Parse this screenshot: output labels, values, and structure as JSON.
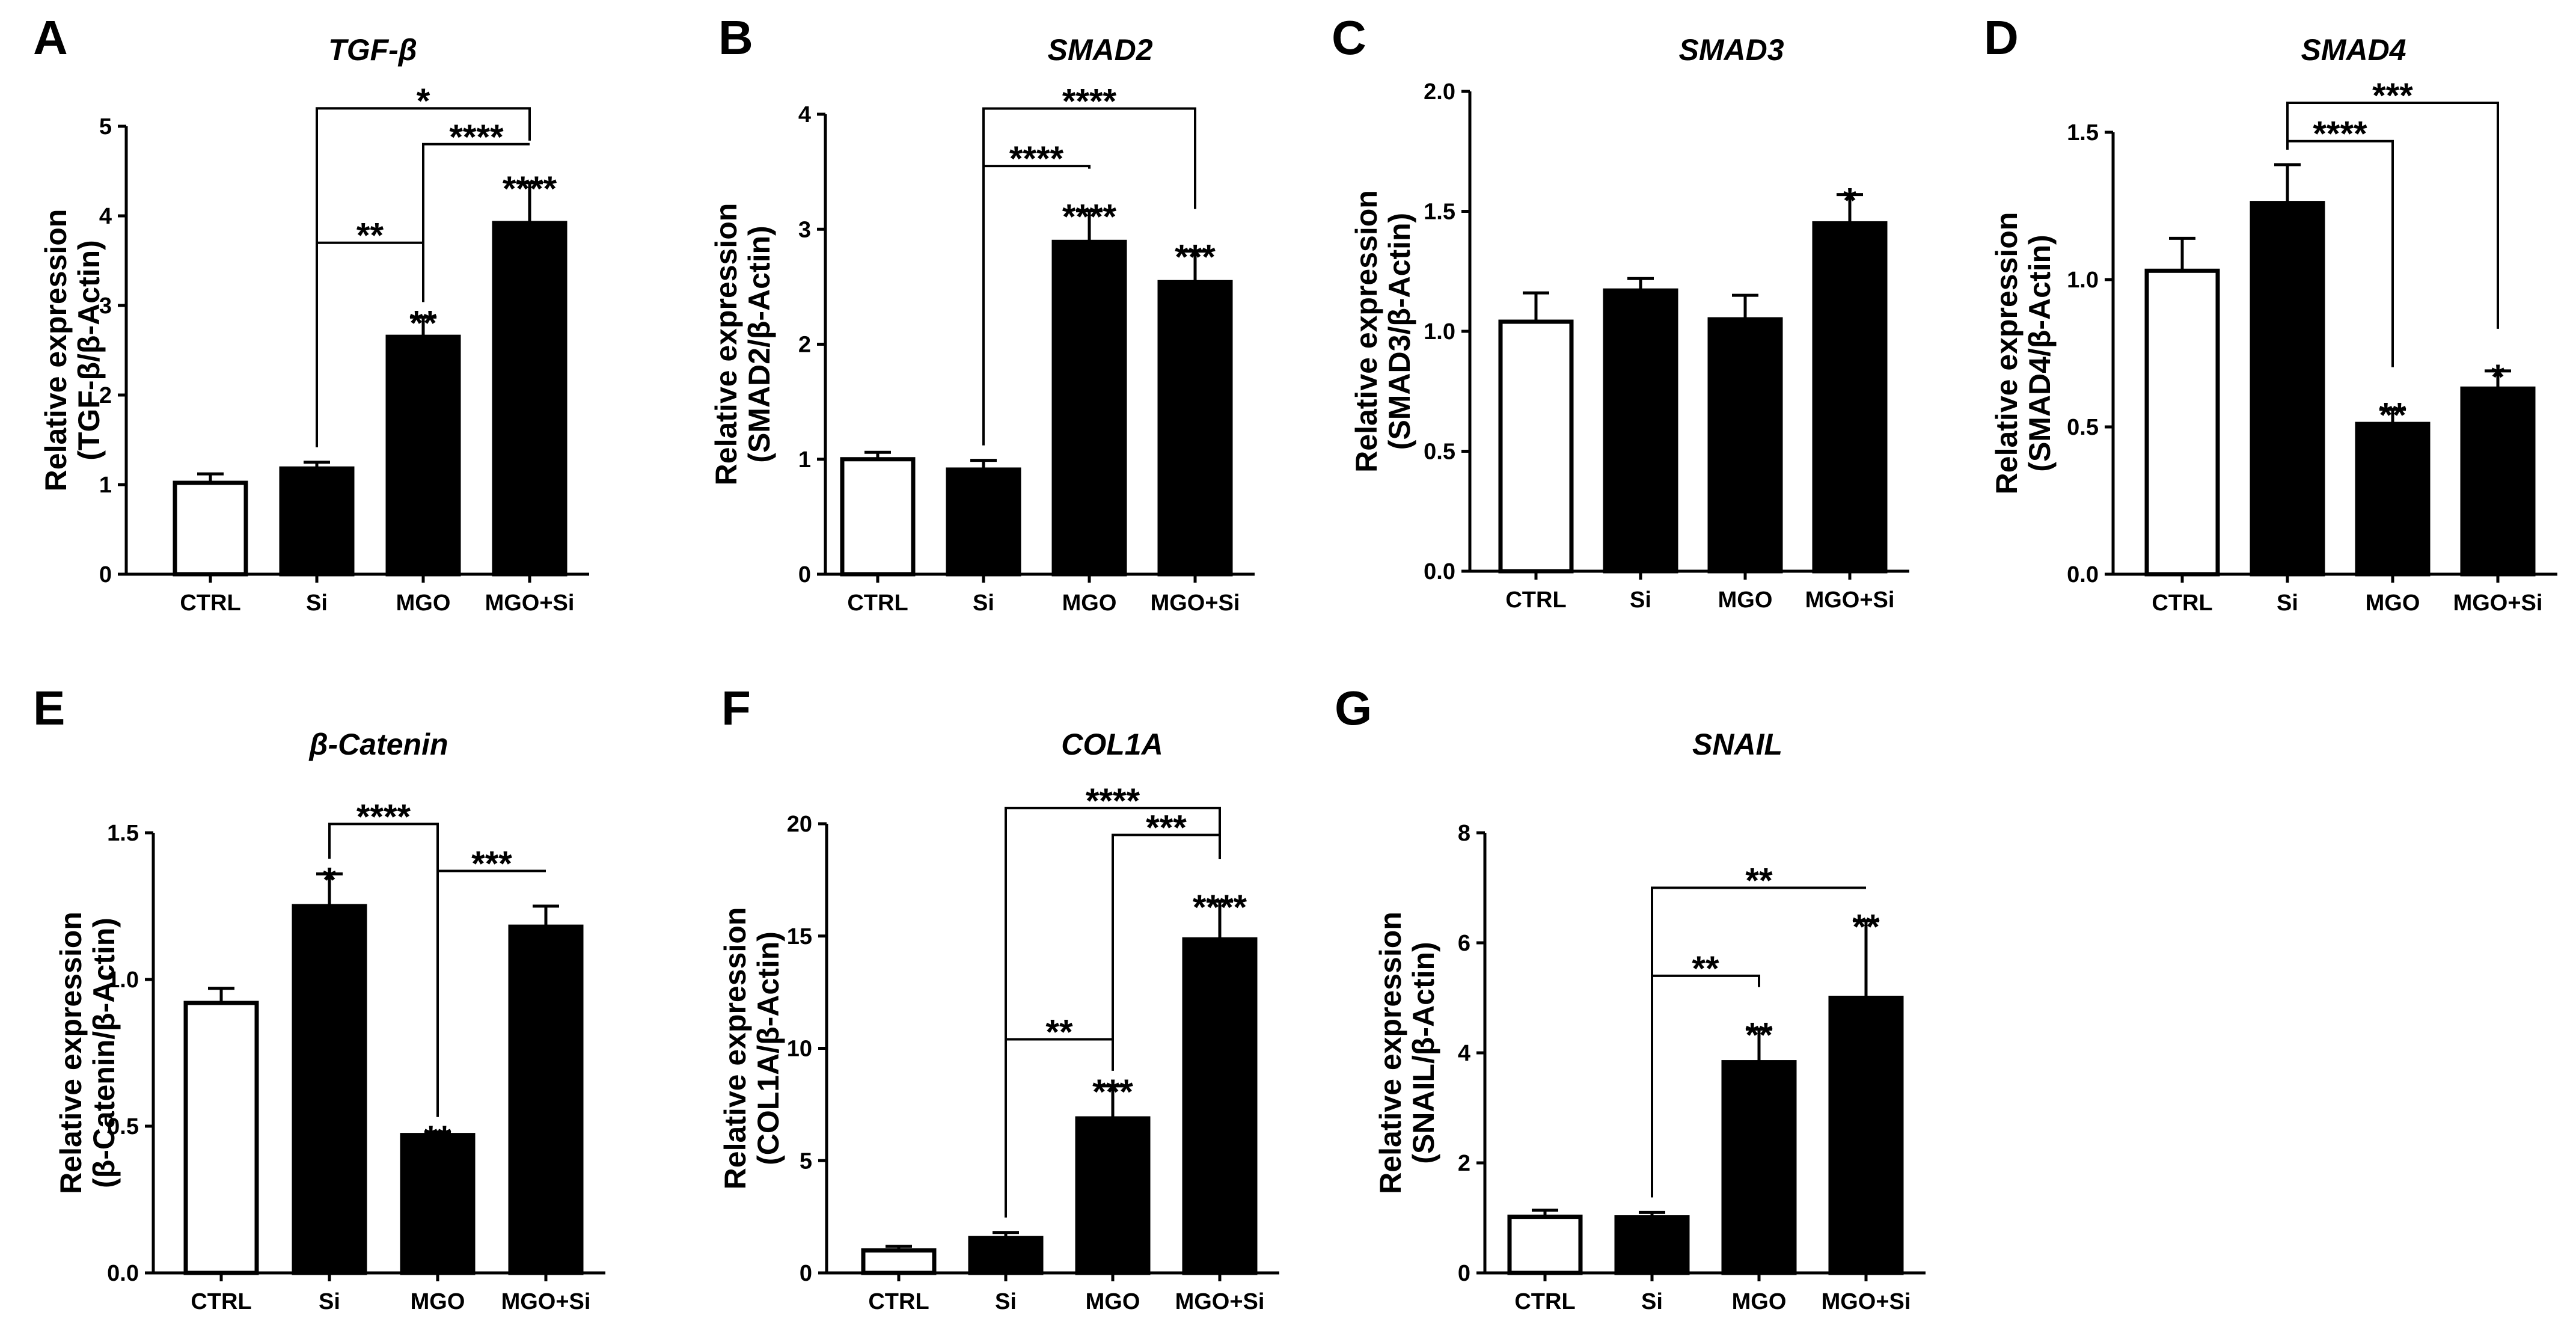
{
  "chart_data": [
    {
      "type": "bar",
      "letter": "A",
      "title": "TGF-β",
      "ylabel": [
        "Relative expression",
        "(TGF-β/β-Actin)"
      ],
      "ylim": [
        0,
        5
      ],
      "ticks": [
        0,
        1,
        2,
        3,
        4,
        5
      ],
      "tick_labels": [
        "0",
        "1",
        "2",
        "3",
        "4",
        "5"
      ],
      "categories": [
        "CTRL",
        "Si",
        "MGO",
        "MGO+Si"
      ],
      "values": [
        1.02,
        1.18,
        2.65,
        3.92
      ],
      "errors": [
        0.1,
        0.07,
        0.22,
        0.45
      ],
      "fills": [
        "#ffffff",
        "#000000",
        "#000000",
        "#000000"
      ],
      "bar_labels": [
        "",
        "",
        "**",
        "****"
      ],
      "brackets": [
        {
          "from": 1,
          "to": 2,
          "y": 3.7,
          "label": "**"
        },
        {
          "from": 2,
          "to": 3,
          "y": 4.8,
          "label": "****"
        },
        {
          "from": 1,
          "to": 3,
          "y": 5.2,
          "label": "*"
        }
      ]
    },
    {
      "type": "bar",
      "letter": "B",
      "title": "SMAD2",
      "ylabel": [
        "Relative expression",
        "(SMAD2/β-Actin)"
      ],
      "ylim": [
        0,
        4
      ],
      "ticks": [
        0,
        1,
        2,
        3,
        4
      ],
      "tick_labels": [
        "0",
        "1",
        "2",
        "3",
        "4"
      ],
      "categories": [
        "CTRL",
        "Si",
        "MGO",
        "MGO+Si"
      ],
      "values": [
        1.0,
        0.91,
        2.89,
        2.54
      ],
      "errors": [
        0.06,
        0.08,
        0.27,
        0.27
      ],
      "fills": [
        "#ffffff",
        "#000000",
        "#000000",
        "#000000"
      ],
      "bar_labels": [
        "",
        "",
        "****",
        "***"
      ],
      "brackets": [
        {
          "from": 1,
          "to": 2,
          "y": 3.55,
          "label": "****"
        },
        {
          "from": 1,
          "to": 3,
          "y": 4.05,
          "label": "****"
        }
      ]
    },
    {
      "type": "bar",
      "letter": "C",
      "title": "SMAD3",
      "ylabel": [
        "Relative expression",
        "(SMAD3/β-Actin)"
      ],
      "ylim": [
        0,
        2
      ],
      "ticks": [
        0,
        0.5,
        1,
        1.5,
        2
      ],
      "tick_labels": [
        "0.0",
        "0.5",
        "1.0",
        "1.5",
        "2.0"
      ],
      "categories": [
        "CTRL",
        "Si",
        "MGO",
        "MGO+Si"
      ],
      "values": [
        1.04,
        1.17,
        1.05,
        1.45
      ],
      "errors": [
        0.12,
        0.05,
        0.1,
        0.12
      ],
      "fills": [
        "#ffffff",
        "#000000",
        "#000000",
        "#000000"
      ],
      "bar_labels": [
        "",
        "",
        "",
        "*"
      ],
      "brackets": []
    },
    {
      "type": "bar",
      "letter": "D",
      "title": "SMAD4",
      "ylabel": [
        "Relative expression",
        "(SMAD4/β-Actin)"
      ],
      "ylim": [
        0,
        1.5
      ],
      "ticks": [
        0,
        0.5,
        1,
        1.5
      ],
      "tick_labels": [
        "0.0",
        "0.5",
        "1.0",
        "1.5"
      ],
      "categories": [
        "CTRL",
        "Si",
        "MGO",
        "MGO+Si"
      ],
      "values": [
        1.03,
        1.26,
        0.51,
        0.63
      ],
      "errors": [
        0.11,
        0.13,
        0.05,
        0.06
      ],
      "fills": [
        "#ffffff",
        "#000000",
        "#000000",
        "#000000"
      ],
      "bar_labels": [
        "",
        "",
        "**",
        "*"
      ],
      "brackets": [
        {
          "from": 1,
          "to": 2,
          "y": 1.47,
          "label": "****"
        },
        {
          "from": 1,
          "to": 3,
          "y": 1.6,
          "label": "***"
        }
      ]
    },
    {
      "type": "bar",
      "letter": "E",
      "title": "β-Catenin",
      "ylabel": [
        "Relative expression",
        "(β-Catenin/β-Actin)"
      ],
      "ylim": [
        0,
        1.5
      ],
      "ticks": [
        0,
        0.5,
        1,
        1.5
      ],
      "tick_labels": [
        "0.0",
        "0.5",
        "1.0",
        "1.5"
      ],
      "categories": [
        "CTRL",
        "Si",
        "MGO",
        "MGO+Si"
      ],
      "values": [
        0.92,
        1.25,
        0.47,
        1.18
      ],
      "errors": [
        0.05,
        0.11,
        0.01,
        0.07
      ],
      "fills": [
        "#ffffff",
        "#000000",
        "#000000",
        "#000000"
      ],
      "bar_labels": [
        "",
        "*",
        "**",
        ""
      ],
      "brackets": [
        {
          "from": 1,
          "to": 2,
          "y": 1.53,
          "label": "****"
        },
        {
          "from": 2,
          "to": 3,
          "y": 1.37,
          "label": "***"
        }
      ]
    },
    {
      "type": "bar",
      "letter": "F",
      "title": "COL1A",
      "ylabel": [
        "Relative expression",
        "(COL1A/β-Actin)"
      ],
      "ylim": [
        0,
        20
      ],
      "ticks": [
        0,
        5,
        10,
        15,
        20
      ],
      "tick_labels": [
        "0",
        "5",
        "10",
        "15",
        "20"
      ],
      "categories": [
        "CTRL",
        "Si",
        "MGO",
        "MGO+Si"
      ],
      "values": [
        1.0,
        1.55,
        6.88,
        14.85
      ],
      "errors": [
        0.18,
        0.25,
        1.45,
        1.7
      ],
      "fills": [
        "#ffffff",
        "#000000",
        "#000000",
        "#000000"
      ],
      "bar_labels": [
        "",
        "",
        "***",
        "****"
      ],
      "brackets": [
        {
          "from": 1,
          "to": 2,
          "y": 10.4,
          "label": "**"
        },
        {
          "from": 2,
          "to": 3,
          "y": 19.5,
          "label": "***"
        },
        {
          "from": 1,
          "to": 3,
          "y": 20.7,
          "label": "****"
        }
      ]
    },
    {
      "type": "bar",
      "letter": "G",
      "title": "SNAIL",
      "ylabel": [
        "Relative expression",
        "(SNAIL/β-Actin)"
      ],
      "ylim": [
        0,
        8
      ],
      "ticks": [
        0,
        2,
        4,
        6,
        8
      ],
      "tick_labels": [
        "0",
        "2",
        "4",
        "6",
        "8"
      ],
      "categories": [
        "CTRL",
        "Si",
        "MGO",
        "MGO+Si"
      ],
      "values": [
        1.02,
        1.01,
        3.83,
        5.0
      ],
      "errors": [
        0.12,
        0.09,
        0.6,
        1.4
      ],
      "fills": [
        "#ffffff",
        "#000000",
        "#000000",
        "#000000"
      ],
      "bar_labels": [
        "",
        "",
        "**",
        "**"
      ],
      "brackets": [
        {
          "from": 1,
          "to": 2,
          "y": 5.4,
          "label": "**"
        },
        {
          "from": 1,
          "to": 3,
          "y": 7.0,
          "label": "**"
        }
      ]
    }
  ]
}
